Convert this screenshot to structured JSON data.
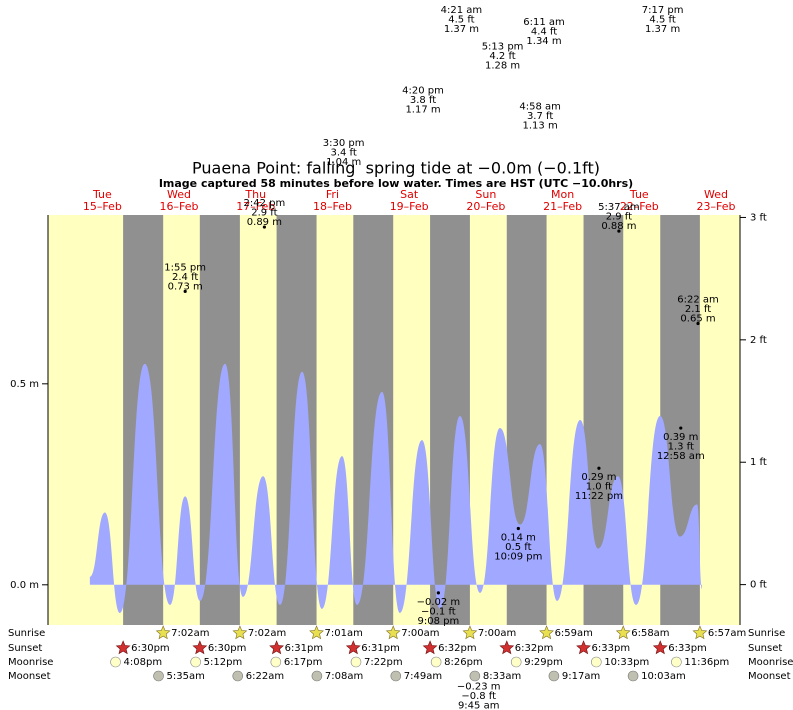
{
  "chart_data": {
    "type": "area",
    "title": "Puaena Point: falling  spring tide at −0.0m (−0.1ft)",
    "subtitle": "Image captured 58 minutes before low water. Times are HST (UTC −10.0hrs)",
    "days": [
      {
        "name": "Tue",
        "date": "15–Feb"
      },
      {
        "name": "Wed",
        "date": "16–Feb"
      },
      {
        "name": "Thu",
        "date": "17–Feb"
      },
      {
        "name": "Fri",
        "date": "18–Feb"
      },
      {
        "name": "Sat",
        "date": "19–Feb"
      },
      {
        "name": "Sun",
        "date": "20–Feb"
      },
      {
        "name": "Mon",
        "date": "21–Feb"
      },
      {
        "name": "Tue",
        "date": "22–Feb"
      },
      {
        "name": "Wed",
        "date": "23–Feb"
      }
    ],
    "xlim": [
      -5,
      211.5
    ],
    "ylim": [
      -0.1,
      0.92
    ],
    "y2lim": [
      -0.33,
      3.02
    ],
    "yticks": [
      {
        "value": 0,
        "label": "0.0 m"
      },
      {
        "value": 0.5,
        "label": "0.5 m"
      }
    ],
    "y2ticks": [
      {
        "value": 0,
        "label": "0 ft"
      },
      {
        "value": 1,
        "label": "1 ft"
      },
      {
        "value": 2,
        "label": "2 ft"
      },
      {
        "value": 3,
        "label": "3 ft"
      }
    ],
    "day_color": "#ffffc0",
    "night_color": "#909090",
    "curve": {
      "color": "#a0a8ff",
      "x": [
        8.1,
        12.8,
        17.5,
        25.3,
        33.2,
        37.9,
        42.6,
        50.4,
        56.0,
        62.3,
        67.6,
        74.5,
        80.7,
        87.0,
        91.7,
        99.5,
        105.1,
        112.0,
        117.7,
        123.9,
        130.2,
        136.4,
        142.7,
        148.9,
        154.3,
        161.5,
        167.1,
        173.3,
        179.0,
        186.5,
        192.7,
        198.1,
        199.6
      ],
      "values": [
        0.02,
        0.18,
        -0.07,
        0.55,
        -0.05,
        0.22,
        -0.04,
        0.55,
        -0.03,
        0.27,
        -0.05,
        0.53,
        -0.06,
        0.32,
        -0.05,
        0.48,
        -0.07,
        0.36,
        -0.06,
        0.42,
        -0.02,
        0.39,
        0.15,
        0.35,
        -0.04,
        0.41,
        0.09,
        0.27,
        -0.05,
        0.42,
        0.12,
        0.2,
        -0.01
      ]
    },
    "tides": [
      {
        "type": "high",
        "date": "16–Feb",
        "time": "1:55 pm",
        "ft": 2.4,
        "ft_label": "2.4 ft",
        "m": 0.73,
        "m_label": "0.73 m"
      },
      {
        "type": "high",
        "date": "17–Feb",
        "time": "2:42 pm",
        "ft": 2.9,
        "ft_label": "2.9 ft",
        "m": 0.89,
        "m_label": "0.89 m"
      },
      {
        "type": "high",
        "date": "18–Feb",
        "time": "3:30 pm",
        "ft": 3.4,
        "ft_label": "3.4 ft",
        "m": 1.04,
        "m_label": "1.04 m"
      },
      {
        "type": "high",
        "date": "19–Feb",
        "time": "4:20 pm",
        "ft": 3.8,
        "ft_label": "3.8 ft",
        "m": 1.17,
        "m_label": "1.17 m"
      },
      {
        "type": "high",
        "date": "20–Feb",
        "time": "4:21 am",
        "ft": 4.5,
        "ft_label": "4.5 ft",
        "m": 1.37,
        "m_label": "1.37 m"
      },
      {
        "type": "high",
        "date": "20–Feb",
        "time": "5:13 pm",
        "ft": 4.2,
        "ft_label": "4.2 ft",
        "m": 1.28,
        "m_label": "1.28 m"
      },
      {
        "type": "high",
        "date": "21–Feb",
        "time": "4:58 am",
        "ft": 3.7,
        "ft_label": "3.7 ft",
        "m": 1.13,
        "m_label": "1.13 m"
      },
      {
        "type": "high",
        "date": "21–Feb",
        "time": "6:11 am",
        "ft": 4.4,
        "ft_label": "4.4 ft",
        "m": 1.34,
        "m_label": "1.34 m"
      },
      {
        "type": "high",
        "date": "22–Feb",
        "time": "5:37 am",
        "ft": 2.9,
        "ft_label": "2.9 ft",
        "m": 0.88,
        "m_label": "0.88 m"
      },
      {
        "type": "high",
        "date": "22–Feb",
        "time": "7:17 pm",
        "ft": 4.5,
        "ft_label": "4.5 ft",
        "m": 1.37,
        "m_label": "1.37 m"
      },
      {
        "type": "high",
        "date": "23–Feb",
        "time": "6:22 am",
        "ft": 2.1,
        "ft_label": "2.1 ft",
        "m": 0.65,
        "m_label": "0.65 m"
      },
      {
        "type": "low",
        "date": "19–Feb",
        "time": "9:08 pm",
        "ft": -0.1,
        "ft_label": "−0.1 ft",
        "m": -0.02,
        "m_label": "−0.02 m"
      },
      {
        "type": "low",
        "date": "20–Feb",
        "time": "9:45 am",
        "ft": -0.8,
        "ft_label": "−0.8 ft",
        "m": -0.23,
        "m_label": "−0.23 m"
      },
      {
        "type": "low",
        "date": "20–Feb",
        "time": "10:09 pm",
        "ft": 0.5,
        "ft_label": "0.5 ft",
        "m": 0.14,
        "m_label": "0.14 m"
      },
      {
        "type": "low",
        "date": "21–Feb",
        "time": "11:22 pm",
        "ft": 1.0,
        "ft_label": "1.0 ft",
        "m": 0.29,
        "m_label": "0.29 m"
      },
      {
        "type": "low",
        "date": "23–Feb",
        "time": "12:58 am",
        "ft": 1.3,
        "ft_label": "1.3 ft",
        "m": 0.39,
        "m_label": "0.39 m"
      }
    ],
    "events": [
      {
        "label": "Sunrise",
        "icon": "sunrise",
        "items": [
          {
            "date": "16–Feb",
            "time": "7:02am"
          },
          {
            "date": "17–Feb",
            "time": "7:02am"
          },
          {
            "date": "18–Feb",
            "time": "7:01am"
          },
          {
            "date": "19–Feb",
            "time": "7:00am"
          },
          {
            "date": "20–Feb",
            "time": "7:00am"
          },
          {
            "date": "21–Feb",
            "time": "6:59am"
          },
          {
            "date": "22–Feb",
            "time": "6:58am"
          },
          {
            "date": "23–Feb",
            "time": "6:57am"
          }
        ]
      },
      {
        "label": "Sunset",
        "icon": "sunset",
        "items": [
          {
            "date": "15–Feb",
            "time": "6:30pm"
          },
          {
            "date": "16–Feb",
            "time": "6:30pm"
          },
          {
            "date": "17–Feb",
            "time": "6:31pm"
          },
          {
            "date": "18–Feb",
            "time": "6:31pm"
          },
          {
            "date": "19–Feb",
            "time": "6:32pm"
          },
          {
            "date": "20–Feb",
            "time": "6:32pm"
          },
          {
            "date": "21–Feb",
            "time": "6:33pm"
          },
          {
            "date": "22–Feb",
            "time": "6:33pm"
          }
        ]
      },
      {
        "label": "Moonrise",
        "icon": "moonrise",
        "items": [
          {
            "date": "15–Feb",
            "time": "4:08pm"
          },
          {
            "date": "16–Feb",
            "time": "5:12pm"
          },
          {
            "date": "17–Feb",
            "time": "6:17pm"
          },
          {
            "date": "18–Feb",
            "time": "7:22pm"
          },
          {
            "date": "19–Feb",
            "time": "8:26pm"
          },
          {
            "date": "20–Feb",
            "time": "9:29pm"
          },
          {
            "date": "21–Feb",
            "time": "10:33pm"
          },
          {
            "date": "22–Feb",
            "time": "11:36pm"
          }
        ]
      },
      {
        "label": "Moonset",
        "icon": "moonset",
        "items": [
          {
            "date": "16–Feb",
            "time": "5:35am"
          },
          {
            "date": "17–Feb",
            "time": "6:22am"
          },
          {
            "date": "18–Feb",
            "time": "7:08am"
          },
          {
            "date": "19–Feb",
            "time": "7:49am"
          },
          {
            "date": "20–Feb",
            "time": "8:33am"
          },
          {
            "date": "21–Feb",
            "time": "9:17am"
          },
          {
            "date": "22–Feb",
            "time": "10:03am"
          }
        ]
      }
    ]
  }
}
